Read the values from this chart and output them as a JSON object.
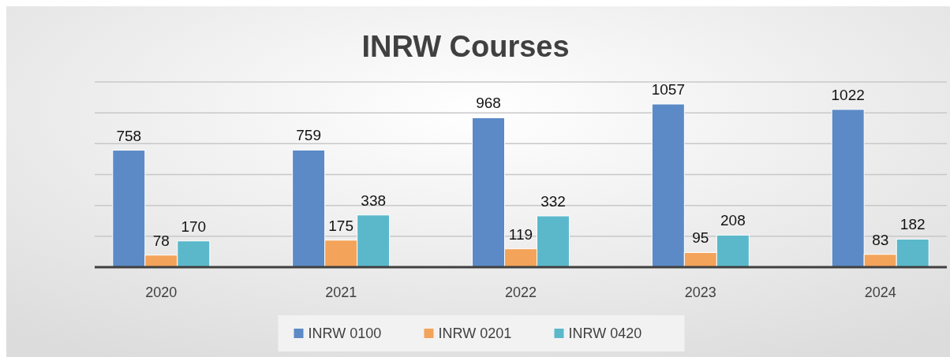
{
  "chart_data": {
    "type": "bar",
    "title": "INRW Courses",
    "categories": [
      "2020",
      "2021",
      "2022",
      "2023",
      "2024"
    ],
    "series": [
      {
        "name": "INRW 0100",
        "color": "#5b8ac6",
        "values": [
          758,
          759,
          968,
          1057,
          1022
        ]
      },
      {
        "name": "INRW 0201",
        "color": "#f4a35a",
        "values": [
          78,
          175,
          119,
          95,
          83
        ]
      },
      {
        "name": "INRW 0420",
        "color": "#5bb8cb",
        "values": [
          170,
          338,
          332,
          208,
          182
        ]
      }
    ],
    "ylim": [
      0,
      1200
    ],
    "yticks": [
      {
        "value": 0,
        "label": null
      },
      {
        "value": 200,
        "label": null
      },
      {
        "value": 400,
        "label": null
      },
      {
        "value": 600,
        "label": null
      },
      {
        "value": 800,
        "label": null
      },
      {
        "value": 1000,
        "label": null
      },
      {
        "value": 1200,
        "label": null
      }
    ],
    "tick_labels": "x",
    "grid": "y",
    "data_labels": true,
    "legend": "bottom"
  }
}
